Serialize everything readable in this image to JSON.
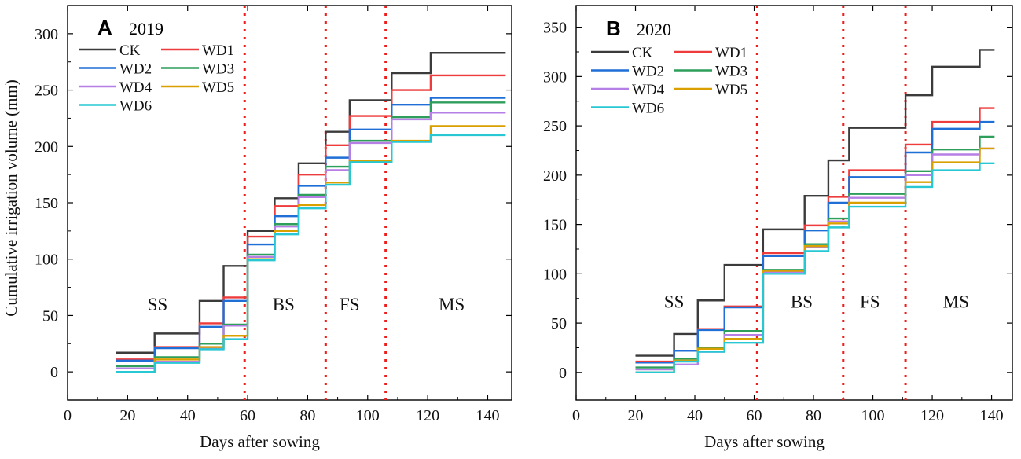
{
  "chart_data": [
    {
      "type": "line",
      "step": true,
      "panel_letter": "A",
      "title": "2019",
      "xlabel": "Days after sowing",
      "ylabel": "Cumulative irrigation volume (mm)",
      "xlim": [
        0,
        148
      ],
      "ylim": [
        -25,
        325
      ],
      "xticks": [
        0,
        20,
        40,
        60,
        80,
        100,
        120,
        140
      ],
      "xtick_labels": [
        "0",
        "20",
        "40",
        "60",
        "80",
        "100",
        "120",
        "140"
      ],
      "yticks": [
        0,
        50,
        100,
        150,
        200,
        250,
        300
      ],
      "ytick_labels": [
        "0",
        "50",
        "100",
        "150",
        "200",
        "250",
        "300"
      ],
      "legend_position": "top-left",
      "stage_dividers": [
        59,
        86,
        106
      ],
      "stage_labels": [
        {
          "text": "SS",
          "x": 30,
          "y": 60
        },
        {
          "text": "BS",
          "x": 72,
          "y": 60
        },
        {
          "text": "FS",
          "x": 94,
          "y": 60
        },
        {
          "text": "MS",
          "x": 128,
          "y": 60
        }
      ],
      "x_steps": [
        16,
        29,
        44,
        52,
        60,
        69,
        77,
        86,
        94,
        108,
        121,
        146
      ],
      "series": [
        {
          "name": "CK",
          "color": "#3b3b3b",
          "values": [
            17,
            34,
            63,
            94,
            125,
            154,
            185,
            213,
            241,
            265,
            283,
            283
          ]
        },
        {
          "name": "WD1",
          "color": "#ee3b3b",
          "values": [
            11,
            22,
            43,
            66,
            120,
            147,
            175,
            201,
            227,
            250,
            263,
            263
          ]
        },
        {
          "name": "WD2",
          "color": "#1f6fd6",
          "values": [
            10,
            21,
            40,
            63,
            113,
            138,
            165,
            190,
            215,
            237,
            243,
            243
          ]
        },
        {
          "name": "WD3",
          "color": "#2e9e5b",
          "values": [
            5,
            13,
            25,
            42,
            104,
            131,
            157,
            182,
            205,
            226,
            239,
            239
          ]
        },
        {
          "name": "WD4",
          "color": "#b57fe6",
          "values": [
            3,
            9,
            21,
            41,
            102,
            129,
            155,
            179,
            203,
            224,
            230,
            230
          ]
        },
        {
          "name": "WD5",
          "color": "#d9a000",
          "values": [
            0,
            11,
            22,
            32,
            100,
            125,
            148,
            168,
            187,
            205,
            218,
            218
          ]
        },
        {
          "name": "WD6",
          "color": "#27c8d3",
          "values": [
            0,
            8,
            20,
            29,
            99,
            122,
            145,
            166,
            186,
            204,
            210,
            210
          ]
        }
      ]
    },
    {
      "type": "line",
      "step": true,
      "panel_letter": "B",
      "title": "2020",
      "xlabel": "Days after sowing",
      "ylabel": "",
      "xlim": [
        0,
        147
      ],
      "ylim": [
        -28,
        372
      ],
      "xticks": [
        0,
        20,
        40,
        60,
        80,
        100,
        120,
        140
      ],
      "xtick_labels": [
        "0",
        "20",
        "40",
        "60",
        "80",
        "100",
        "120",
        "140"
      ],
      "yticks": [
        0,
        50,
        100,
        150,
        200,
        250,
        300,
        350
      ],
      "ytick_labels": [
        "0",
        "50",
        "100",
        "150",
        "200",
        "250",
        "300",
        "350"
      ],
      "legend_position": "top-left",
      "stage_dividers": [
        61,
        90,
        111
      ],
      "stage_labels": [
        {
          "text": "SS",
          "x": 33,
          "y": 72
        },
        {
          "text": "BS",
          "x": 76,
          "y": 72
        },
        {
          "text": "FS",
          "x": 99,
          "y": 72
        },
        {
          "text": "MS",
          "x": 128,
          "y": 72
        }
      ],
      "x_steps": [
        20,
        33,
        41,
        50,
        63,
        77,
        85,
        92,
        111,
        120,
        136,
        141
      ],
      "series": [
        {
          "name": "CK",
          "color": "#3b3b3b",
          "values": [
            17,
            39,
            73,
            109,
            145,
            179,
            215,
            248,
            281,
            310,
            327,
            327
          ]
        },
        {
          "name": "WD1",
          "color": "#ee3b3b",
          "values": [
            11,
            22,
            44,
            67,
            121,
            149,
            178,
            205,
            231,
            254,
            268,
            268
          ]
        },
        {
          "name": "WD2",
          "color": "#1f6fd6",
          "values": [
            10,
            22,
            43,
            66,
            118,
            144,
            172,
            198,
            223,
            247,
            254,
            254
          ]
        },
        {
          "name": "WD3",
          "color": "#2e9e5b",
          "values": [
            5,
            14,
            25,
            42,
            104,
            130,
            156,
            181,
            204,
            226,
            239,
            239
          ]
        },
        {
          "name": "WD4",
          "color": "#b57fe6",
          "values": [
            3,
            8,
            21,
            38,
            102,
            127,
            153,
            177,
            200,
            221,
            227,
            227
          ]
        },
        {
          "name": "WD5",
          "color": "#d9a000",
          "values": [
            0,
            12,
            24,
            34,
            103,
            128,
            151,
            172,
            193,
            213,
            227,
            227
          ]
        },
        {
          "name": "WD6",
          "color": "#27c8d3",
          "values": [
            0,
            11,
            21,
            30,
            100,
            123,
            147,
            168,
            188,
            205,
            212,
            212
          ]
        }
      ]
    }
  ]
}
